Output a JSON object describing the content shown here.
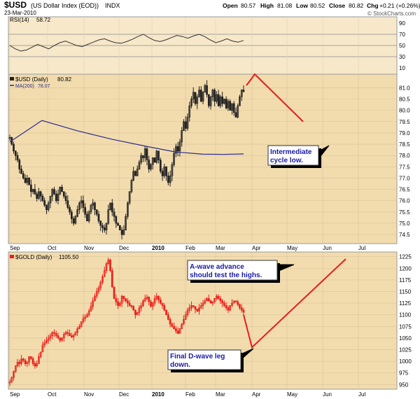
{
  "header": {
    "symbol": "$USD",
    "name": "(US Dollar Index (EOD))",
    "exchange": "INDX",
    "date": "23-Mar-2010",
    "open_label": "Open",
    "open": "80.57",
    "high_label": "High",
    "high": "81.08",
    "low_label": "Low",
    "low": "80.52",
    "close_label": "Close",
    "close": "80.82",
    "chg_label": "Chg",
    "chg": "+0.21 (+0.26%)",
    "copyright": "© StockCharts.com"
  },
  "chart_data": [
    {
      "type": "line",
      "panel": "rsi",
      "legend": [
        {
          "symbol": "RSI(14)",
          "value": "58.72"
        }
      ],
      "y_ticks": [
        "90",
        "70",
        "50",
        "30",
        "10"
      ],
      "ylim": [
        0,
        100
      ],
      "reference_lines": [
        70,
        50,
        30
      ],
      "series": [
        {
          "name": "RSI(14)",
          "color": "#333333",
          "values": [
            50,
            44,
            40,
            42,
            47,
            52,
            48,
            44,
            50,
            55,
            58,
            54,
            50,
            48,
            52,
            56,
            60,
            62,
            58,
            55,
            54,
            57,
            61,
            66,
            70,
            64,
            59,
            57,
            60,
            64,
            68,
            66,
            63,
            67,
            70,
            66,
            60,
            55,
            58,
            62,
            58,
            56,
            59
          ]
        }
      ]
    },
    {
      "type": "candlestick",
      "panel": "usd",
      "legend": [
        {
          "symbol": "$USD (Daily)",
          "value": "80.82"
        },
        {
          "symbol": "MA(200)",
          "value": "78.07",
          "color": "#2b2b8c"
        }
      ],
      "x_ticks": [
        "Sep",
        "Oct",
        "Nov",
        "Dec",
        "2010",
        "Feb",
        "Mar",
        "Apr",
        "May",
        "Jun",
        "Jul"
      ],
      "y_ticks": [
        "81.0",
        "80.5",
        "80.0",
        "79.5",
        "79.0",
        "78.5",
        "78.0",
        "77.5",
        "77.0",
        "76.5",
        "76.0",
        "75.5",
        "75.0",
        "74.5"
      ],
      "ylim": [
        74.1,
        81.6
      ],
      "closes": [
        78.8,
        78.5,
        78.2,
        78.0,
        77.8,
        77.4,
        77.2,
        77.0,
        76.8,
        77.0,
        76.7,
        76.4,
        76.5,
        76.3,
        76.1,
        76.4,
        76.2,
        76.0,
        75.8,
        75.6,
        75.9,
        76.2,
        76.5,
        76.3,
        76.0,
        76.3,
        76.6,
        76.4,
        76.2,
        76.0,
        75.7,
        75.5,
        75.2,
        75.0,
        75.3,
        75.6,
        75.9,
        76.0,
        75.7,
        75.4,
        75.1,
        75.5,
        75.8,
        75.9,
        75.6,
        75.4,
        75.1,
        74.9,
        74.8,
        74.7,
        75.0,
        75.6,
        75.9,
        75.5,
        75.3,
        75.0,
        74.9,
        74.7,
        74.5,
        74.7,
        75.3,
        75.9,
        76.4,
        76.9,
        77.3,
        77.1,
        77.4,
        77.7,
        78.0,
        77.9,
        78.3,
        77.8,
        77.4,
        77.6,
        77.9,
        77.7,
        78.2,
        77.8,
        77.3,
        77.1,
        77.5,
        77.1,
        76.8,
        77.1,
        77.6,
        78.1,
        78.4,
        78.2,
        78.6,
        79.1,
        79.5,
        79.2,
        79.7,
        80.2,
        80.5,
        80.8,
        80.3,
        80.6,
        80.9,
        80.4,
        80.8,
        81.1,
        80.7,
        80.2,
        80.6,
        80.9,
        80.4,
        80.7,
        80.2,
        80.6,
        80.3,
        80.5,
        80.1,
        80.4,
        80.0,
        80.3,
        79.9,
        79.7,
        80.2,
        80.6,
        80.9,
        80.82
      ],
      "ma200": [
        78.6,
        79.55,
        79.1,
        78.72,
        78.4,
        78.16,
        78.06,
        78.05,
        78.07
      ]
    },
    {
      "type": "candlestick",
      "panel": "gold",
      "legend": [
        {
          "symbol": "$GOLD (Daily)",
          "value": "1105.50"
        }
      ],
      "x_ticks": [
        "Sep",
        "Oct",
        "Nov",
        "Dec",
        "2010",
        "Feb",
        "Mar",
        "Apr",
        "May",
        "Jun",
        "Jul"
      ],
      "y_ticks": [
        "1225",
        "1200",
        "1175",
        "1150",
        "1125",
        "1100",
        "1075",
        "1050",
        "1025",
        "1000",
        "975",
        "950"
      ],
      "ylim": [
        940,
        1235
      ],
      "closes": [
        955,
        965,
        978,
        990,
        998,
        995,
        1005,
        1002,
        995,
        998,
        1010,
        1006,
        995,
        990,
        995,
        1010,
        1020,
        1035,
        1040,
        1045,
        1050,
        1055,
        1062,
        1060,
        1055,
        1050,
        1045,
        1050,
        1058,
        1062,
        1060,
        1055,
        1052,
        1056,
        1062,
        1070,
        1075,
        1085,
        1092,
        1095,
        1100,
        1108,
        1118,
        1130,
        1140,
        1150,
        1158,
        1170,
        1182,
        1195,
        1210,
        1218,
        1195,
        1160,
        1135,
        1128,
        1120,
        1125,
        1140,
        1135,
        1130,
        1125,
        1120,
        1118,
        1110,
        1100,
        1105,
        1115,
        1120,
        1130,
        1135,
        1138,
        1128,
        1118,
        1125,
        1135,
        1140,
        1132,
        1125,
        1120,
        1110,
        1100,
        1090,
        1080,
        1075,
        1070,
        1065,
        1060,
        1070,
        1080,
        1090,
        1100,
        1110,
        1115,
        1120,
        1118,
        1112,
        1108,
        1115,
        1120,
        1125,
        1130,
        1135,
        1130,
        1125,
        1128,
        1135,
        1140,
        1135,
        1130,
        1125,
        1120,
        1115,
        1110,
        1120,
        1125,
        1130,
        1128,
        1122,
        1115,
        1110,
        1105.5
      ]
    }
  ],
  "annotations": {
    "usd_note": [
      "Intermediate",
      "cycle low."
    ],
    "gold_top_note": [
      "A-wave advance",
      "should test the highs."
    ],
    "gold_bottom_note": [
      "Final D-wave leg",
      "down."
    ]
  },
  "projections": {
    "usd": [
      {
        "x": "Mar",
        "y": 81.1
      },
      {
        "x": "Mar",
        "y": 81.6
      },
      {
        "x": "May",
        "y": 79.5
      }
    ],
    "gold": [
      {
        "x": "Mar",
        "y": 1100
      },
      {
        "x": "Apr",
        "y": 1030
      },
      {
        "x": "May",
        "y": 1220
      }
    ]
  },
  "colors": {
    "panel_bg": "#f2dcae",
    "upper_panel_bg": "#f6e8c9",
    "grid": "#d8c29a",
    "usd_candles": "#222222",
    "gold_candles": "#e8201a",
    "ma_line": "#2b2b8c",
    "projection_line": "#e81c1c",
    "annotation_text": "#1a1aa6"
  }
}
